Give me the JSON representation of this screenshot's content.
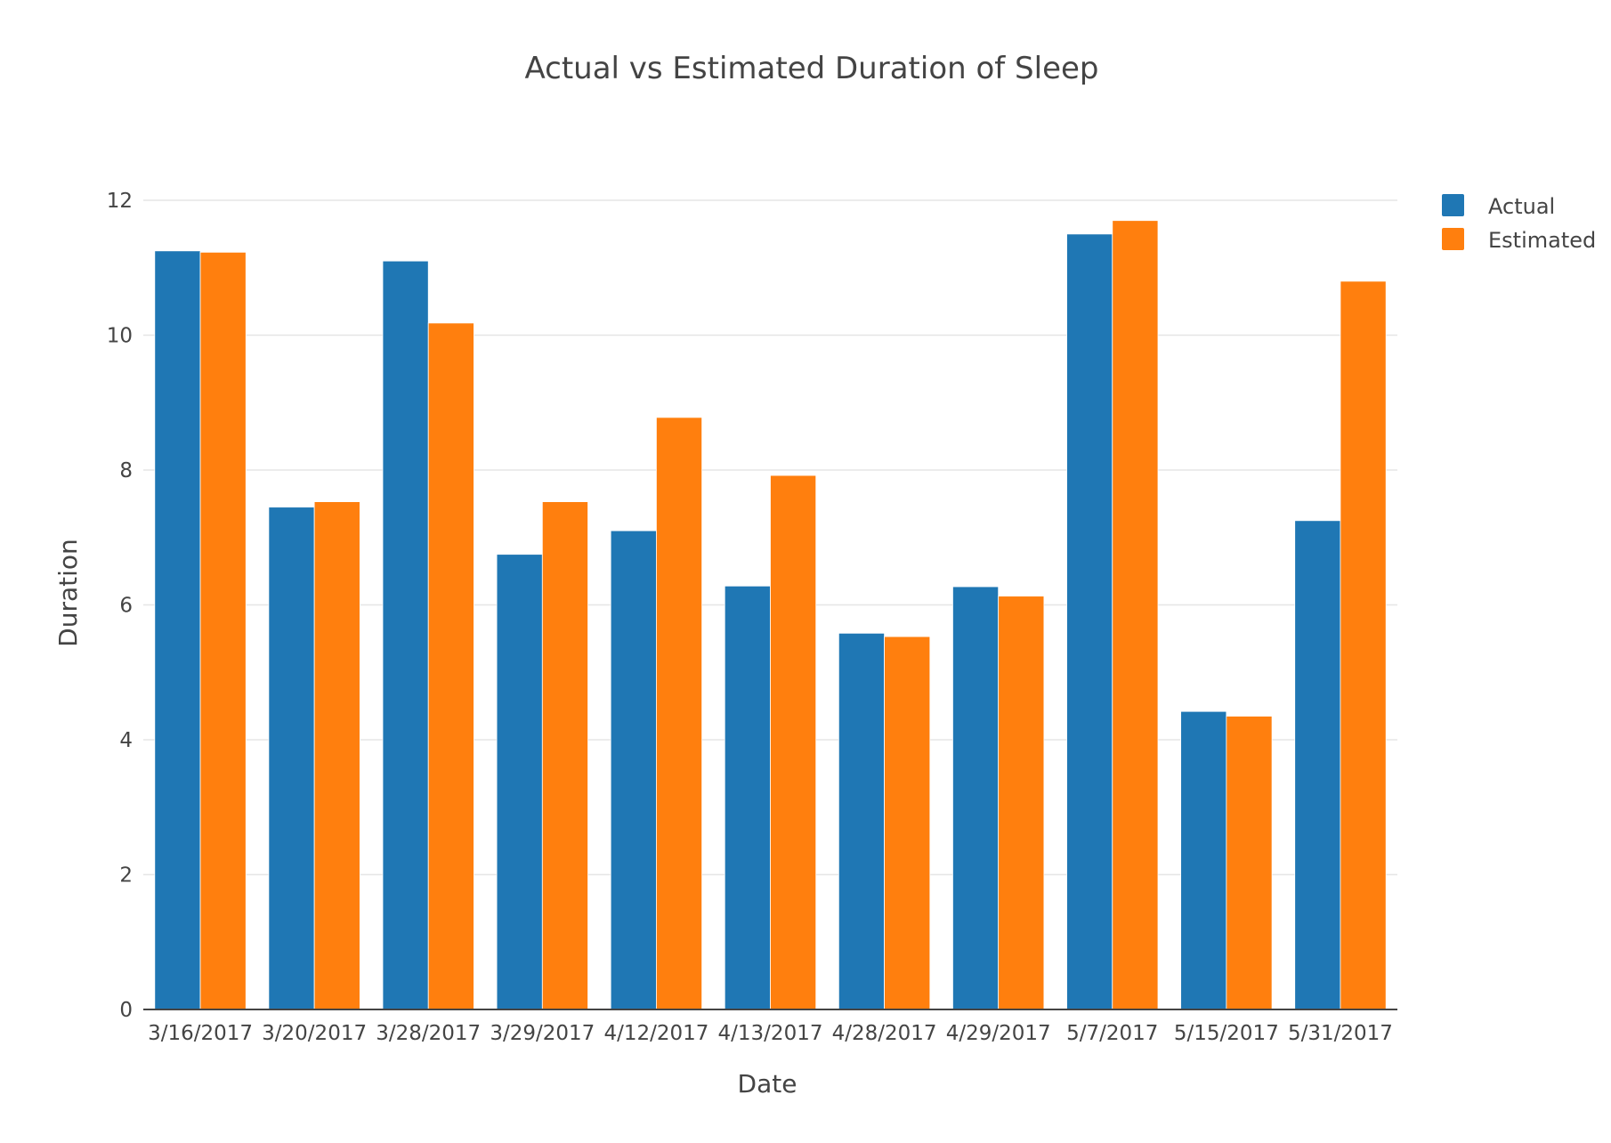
{
  "chart_data": {
    "type": "bar",
    "title": "Actual vs Estimated Duration of Sleep",
    "xlabel": "Date",
    "ylabel": "Duration",
    "ylim": [
      0,
      12
    ],
    "yticks": [
      0,
      2,
      4,
      6,
      8,
      10,
      12
    ],
    "grid": true,
    "legend_position": "top-right",
    "barmode": "group",
    "categories": [
      "3/16/2017",
      "3/20/2017",
      "3/28/2017",
      "3/29/2017",
      "4/12/2017",
      "4/13/2017",
      "4/28/2017",
      "4/29/2017",
      "5/7/2017",
      "5/15/2017",
      "5/31/2017"
    ],
    "series": [
      {
        "name": "Actual",
        "color": "#1f77b4",
        "values": [
          11.25,
          7.45,
          11.1,
          6.75,
          7.1,
          6.28,
          5.58,
          6.27,
          11.5,
          4.42,
          7.25
        ]
      },
      {
        "name": "Estimated",
        "color": "#ff7f0e",
        "values": [
          11.23,
          7.53,
          10.18,
          7.53,
          8.78,
          7.92,
          5.53,
          6.13,
          11.7,
          4.35,
          10.8
        ]
      }
    ]
  }
}
